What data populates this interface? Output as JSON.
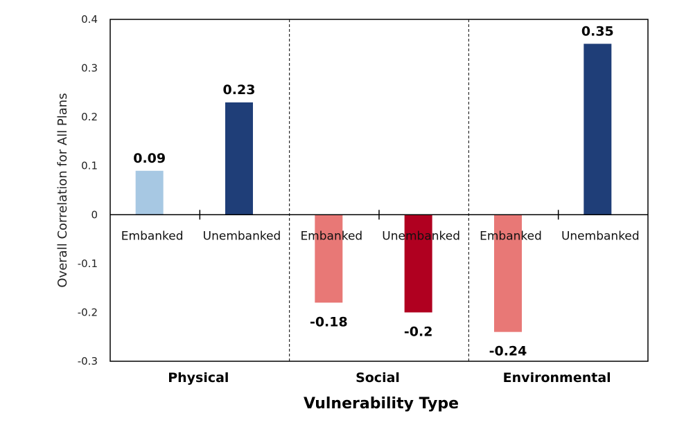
{
  "chart_data": {
    "type": "bar",
    "title": "",
    "xlabel": "Vulnerability Type",
    "ylabel": "Overall Correlation for All Plans",
    "ylim": [
      -0.3,
      0.4
    ],
    "yticks": [
      "0.4",
      "0.3",
      "0.2",
      "0.1",
      "0",
      "-0.1",
      "-0.2",
      "-0.3"
    ],
    "grid": false,
    "legend": "none",
    "groups": [
      "Physical",
      "Social",
      "Environmental"
    ],
    "subcategories": [
      "Embanked",
      "Unembanked"
    ],
    "bars": [
      {
        "group": "Physical",
        "category": "Embanked",
        "value": 0.09,
        "label": "0.09",
        "color": "#a7c8e3"
      },
      {
        "group": "Physical",
        "category": "Unembanked",
        "value": 0.23,
        "label": "0.23",
        "color": "#1f3e78"
      },
      {
        "group": "Social",
        "category": "Embanked",
        "value": -0.18,
        "label": "-0.18",
        "color": "#e87876"
      },
      {
        "group": "Social",
        "category": "Unembanked",
        "value": -0.2,
        "label": "-0.2",
        "color": "#b00020"
      },
      {
        "group": "Environmental",
        "category": "Embanked",
        "value": -0.24,
        "label": "-0.24",
        "color": "#e87876"
      },
      {
        "group": "Environmental",
        "category": "Unembanked",
        "value": 0.35,
        "label": "0.35",
        "color": "#1f3e78"
      }
    ]
  }
}
